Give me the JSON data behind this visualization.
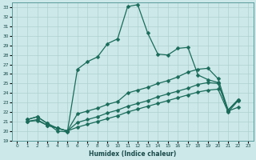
{
  "xlabel": "Humidex (Indice chaleur)",
  "xlim": [
    -0.5,
    23.5
  ],
  "ylim": [
    19,
    33.5
  ],
  "background_color": "#cce8e8",
  "grid_color": "#b0d0d0",
  "line_color": "#1a6b5a",
  "xticks": [
    0,
    1,
    2,
    3,
    4,
    5,
    6,
    7,
    8,
    9,
    10,
    11,
    12,
    13,
    14,
    15,
    16,
    17,
    18,
    19,
    20,
    21,
    22,
    23
  ],
  "yticks": [
    19,
    20,
    21,
    22,
    23,
    24,
    25,
    26,
    27,
    28,
    29,
    30,
    31,
    32,
    33
  ],
  "curve1_x": [
    1,
    2,
    3,
    4,
    5,
    6,
    7,
    8,
    9,
    10,
    11,
    12,
    13,
    14,
    15,
    16,
    17,
    18,
    19,
    20,
    21,
    22
  ],
  "curve1_y": [
    21.2,
    21.5,
    20.8,
    20.0,
    19.9,
    26.5,
    27.3,
    27.8,
    29.2,
    29.7,
    33.1,
    33.3,
    30.3,
    28.1,
    28.0,
    28.7,
    28.8,
    25.9,
    25.4,
    25.1,
    22.1,
    22.5
  ],
  "curve2_x": [
    1,
    2,
    3,
    4,
    5,
    6,
    7,
    8,
    9,
    10,
    11,
    12,
    13,
    14,
    15,
    16,
    17,
    18,
    19,
    20,
    21,
    22
  ],
  "curve2_y": [
    21.2,
    21.5,
    20.8,
    20.3,
    20.0,
    21.8,
    22.1,
    22.4,
    22.8,
    23.1,
    24.0,
    24.3,
    24.6,
    25.0,
    25.3,
    25.7,
    26.2,
    26.5,
    26.6,
    25.5,
    22.2,
    23.3
  ],
  "curve3_x": [
    1,
    2,
    3,
    4,
    5,
    6,
    7,
    8,
    9,
    10,
    11,
    12,
    13,
    14,
    15,
    16,
    17,
    18,
    19,
    20,
    21,
    22
  ],
  "curve3_y": [
    21.0,
    21.2,
    20.6,
    20.3,
    20.0,
    20.9,
    21.2,
    21.5,
    21.9,
    22.2,
    22.6,
    22.9,
    23.2,
    23.6,
    23.9,
    24.2,
    24.5,
    24.9,
    25.1,
    25.0,
    22.2,
    23.3
  ],
  "curve4_x": [
    1,
    2,
    3,
    4,
    5,
    6,
    7,
    8,
    9,
    10,
    11,
    12,
    13,
    14,
    15,
    16,
    17,
    18,
    19,
    20,
    21,
    22
  ],
  "curve4_y": [
    21.0,
    21.1,
    20.6,
    20.3,
    20.0,
    20.4,
    20.7,
    21.0,
    21.3,
    21.6,
    22.0,
    22.3,
    22.6,
    22.9,
    23.2,
    23.5,
    23.8,
    24.1,
    24.3,
    24.4,
    22.0,
    23.2
  ]
}
